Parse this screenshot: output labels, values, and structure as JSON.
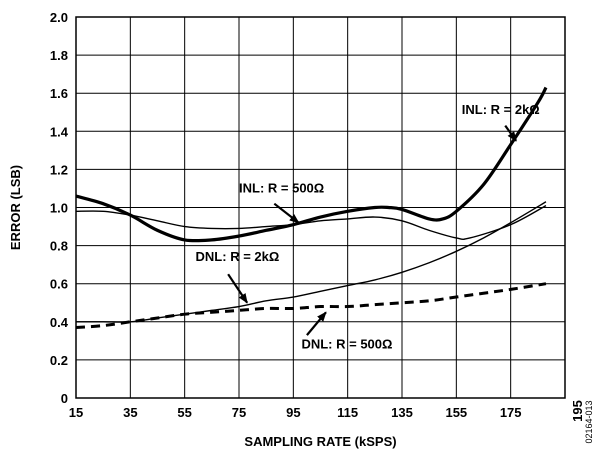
{
  "chart_data": {
    "type": "line",
    "xlabel": "SAMPLING RATE (kSPS)",
    "ylabel": "ERROR (LSB)",
    "xlim": [
      15,
      195
    ],
    "ylim": [
      0,
      2.0
    ],
    "xticks": [
      15,
      35,
      55,
      75,
      95,
      115,
      135,
      155,
      175,
      195
    ],
    "yticks": [
      0,
      0.2,
      0.4,
      0.6,
      0.8,
      1.0,
      1.2,
      1.4,
      1.6,
      1.8,
      2.0
    ],
    "ytick_labels": [
      "0",
      "0.2",
      "0.4",
      "0.6",
      "0.8",
      "1.0",
      "1.2",
      "1.4",
      "1.6",
      "1.8",
      "2.0"
    ],
    "grid": true,
    "figure_id": "02164-013",
    "series": [
      {
        "name": "INL: R = 2kΩ",
        "style": "thick-solid",
        "x": [
          15,
          25,
          35,
          45,
          55,
          65,
          75,
          85,
          95,
          105,
          115,
          125,
          130,
          135,
          145,
          150,
          155,
          165,
          175,
          185,
          188
        ],
        "y": [
          1.06,
          1.02,
          0.96,
          0.88,
          0.83,
          0.83,
          0.85,
          0.88,
          0.91,
          0.95,
          0.98,
          1.0,
          1.0,
          0.99,
          0.94,
          0.94,
          0.98,
          1.12,
          1.33,
          1.55,
          1.63
        ]
      },
      {
        "name": "INL: R = 500Ω",
        "style": "thin-solid",
        "x": [
          15,
          25,
          35,
          45,
          55,
          65,
          75,
          85,
          95,
          105,
          115,
          125,
          135,
          145,
          155,
          160,
          175,
          188
        ],
        "y": [
          0.98,
          0.98,
          0.96,
          0.93,
          0.9,
          0.89,
          0.89,
          0.9,
          0.91,
          0.93,
          0.94,
          0.95,
          0.93,
          0.88,
          0.84,
          0.84,
          0.91,
          1.01
        ]
      },
      {
        "name": "DNL: R = 2kΩ",
        "style": "thin-solid",
        "x": [
          15,
          25,
          35,
          45,
          55,
          65,
          75,
          85,
          95,
          105,
          115,
          125,
          135,
          145,
          155,
          165,
          175,
          188
        ],
        "y": [
          0.4,
          0.4,
          0.4,
          0.42,
          0.44,
          0.46,
          0.48,
          0.51,
          0.53,
          0.56,
          0.59,
          0.62,
          0.66,
          0.71,
          0.77,
          0.84,
          0.92,
          1.03
        ]
      },
      {
        "name": "DNL: R = 500Ω",
        "style": "thick-dashed",
        "x": [
          15,
          25,
          35,
          45,
          55,
          65,
          75,
          85,
          95,
          105,
          115,
          125,
          135,
          145,
          155,
          165,
          175,
          188
        ],
        "y": [
          0.37,
          0.38,
          0.4,
          0.42,
          0.44,
          0.45,
          0.46,
          0.47,
          0.47,
          0.48,
          0.48,
          0.49,
          0.5,
          0.51,
          0.53,
          0.55,
          0.57,
          0.6
        ]
      }
    ],
    "annotations": [
      {
        "text": "INL: R = 2kΩ",
        "series": 0,
        "text_x": 157,
        "text_y": 1.49,
        "arrow_from_x": 173,
        "arrow_from_y": 1.43,
        "arrow_to_x": 177,
        "arrow_to_y": 1.35
      },
      {
        "text": "INL: R = 500Ω",
        "series": 1,
        "text_x": 75,
        "text_y": 1.08,
        "arrow_from_x": 88,
        "arrow_from_y": 1.02,
        "arrow_to_x": 97,
        "arrow_to_y": 0.92
      },
      {
        "text": "DNL: R = 2kΩ",
        "series": 2,
        "text_x": 59,
        "text_y": 0.72,
        "arrow_from_x": 71,
        "arrow_from_y": 0.65,
        "arrow_to_x": 78,
        "arrow_to_y": 0.5
      },
      {
        "text": "DNL: R = 500Ω",
        "series": 3,
        "text_x": 98,
        "text_y": 0.26,
        "arrow_from_x": 100,
        "arrow_from_y": 0.33,
        "arrow_to_x": 107,
        "arrow_to_y": 0.45
      }
    ]
  }
}
